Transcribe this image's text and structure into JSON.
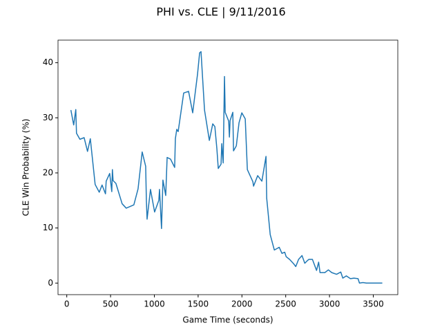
{
  "chart_data": {
    "type": "line",
    "title": "PHI vs. CLE | 9/11/2016",
    "x_label": "Game Time (seconds)",
    "y_label": "CLE Win Probability (%)",
    "color": "#1f77b4",
    "xlim": [
      -100,
      3780
    ],
    "ylim": [
      -2.1,
      44.1
    ],
    "xticks": [
      0,
      500,
      1000,
      1500,
      2000,
      2500,
      3000,
      3500
    ],
    "yticks": [
      0,
      10,
      20,
      30,
      40
    ],
    "grid": false,
    "x": [
      47,
      79,
      103,
      111,
      150,
      198,
      237,
      269,
      324,
      371,
      403,
      442,
      450,
      490,
      514,
      521,
      529,
      561,
      632,
      679,
      766,
      814,
      861,
      901,
      909,
      917,
      956,
      1003,
      1051,
      1059,
      1082,
      1098,
      1130,
      1146,
      1185,
      1232,
      1240,
      1256,
      1272,
      1335,
      1391,
      1438,
      1493,
      1517,
      1533,
      1573,
      1628,
      1667,
      1691,
      1714,
      1730,
      1762,
      1770,
      1786,
      1801,
      1809,
      1849,
      1857,
      1865,
      1896,
      1904,
      1936,
      1967,
      1999,
      2038,
      2062,
      2125,
      2133,
      2180,
      2228,
      2275,
      2283,
      2323,
      2370,
      2426,
      2457,
      2489,
      2505,
      2544,
      2591,
      2615,
      2647,
      2686,
      2718,
      2749,
      2765,
      2805,
      2852,
      2876,
      2892,
      2947,
      2987,
      3026,
      3081,
      3129,
      3152,
      3192,
      3239,
      3279,
      3326,
      3342,
      3382,
      3421,
      3603
    ],
    "values": [
      31.4,
      28.7,
      31.5,
      27.2,
      26.1,
      26.4,
      23.9,
      26.2,
      17.9,
      16.5,
      17.8,
      16.2,
      18.5,
      19.9,
      16.6,
      20.6,
      18.6,
      18.1,
      14.4,
      13.6,
      14.2,
      17.1,
      23.8,
      21.2,
      15,
      11.6,
      17,
      12.9,
      15,
      17,
      9.9,
      18.7,
      15.9,
      22.8,
      22.5,
      21,
      26.2,
      27.9,
      27.5,
      34.5,
      34.8,
      30.9,
      37.9,
      41.8,
      42,
      31.4,
      25.9,
      28.9,
      28.4,
      24.4,
      20.8,
      21.6,
      25.3,
      21.8,
      37.5,
      31,
      29.4,
      26.5,
      29.5,
      31,
      24,
      24.9,
      29.1,
      30.9,
      29.8,
      20.6,
      18.4,
      17.6,
      19.5,
      18.5,
      23,
      15.4,
      8.8,
      6,
      6.5,
      5.4,
      5.6,
      4.8,
      4.3,
      3.5,
      3,
      4.3,
      5,
      3.6,
      4.1,
      4.3,
      4.3,
      2.3,
      3.8,
      1.9,
      1.9,
      2.4,
      1.9,
      1.6,
      2,
      0.9,
      1.3,
      0.8,
      0.9,
      0.8,
      0,
      0.1,
      0,
      0
    ]
  }
}
